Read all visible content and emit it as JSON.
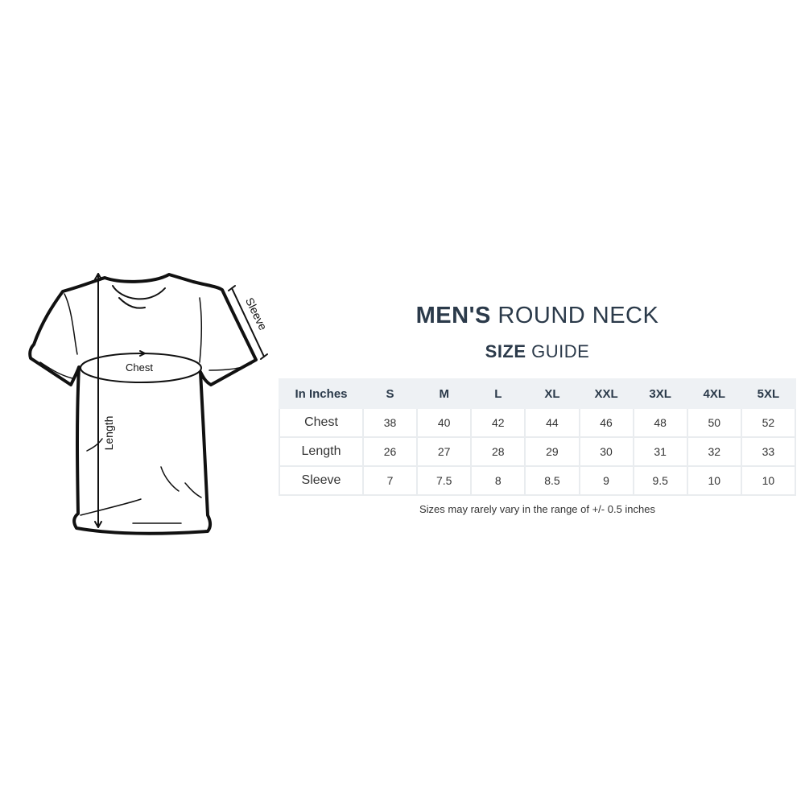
{
  "title": {
    "bold": "MEN'S",
    "light": "ROUND NECK"
  },
  "subtitle": {
    "bold": "SIZE",
    "light": "GUIDE"
  },
  "diagram_labels": {
    "chest": "Chest",
    "length": "Length",
    "sleeve": "Sleeve"
  },
  "table": {
    "header": [
      "In Inches",
      "S",
      "M",
      "L",
      "XL",
      "XXL",
      "3XL",
      "4XL",
      "5XL"
    ],
    "rows": [
      {
        "label": "Chest",
        "values": [
          "38",
          "40",
          "42",
          "44",
          "46",
          "48",
          "50",
          "52"
        ]
      },
      {
        "label": "Length",
        "values": [
          "26",
          "27",
          "28",
          "29",
          "30",
          "31",
          "32",
          "33"
        ]
      },
      {
        "label": "Sleeve",
        "values": [
          "7",
          "7.5",
          "8",
          "8.5",
          "9",
          "9.5",
          "10",
          "10"
        ]
      }
    ]
  },
  "note": "Sizes may rarely vary in the range of +/- 0.5 inches",
  "colors": {
    "heading": "#2b3a4a",
    "header_bg": "#eef1f4",
    "border": "#e9ecef"
  }
}
